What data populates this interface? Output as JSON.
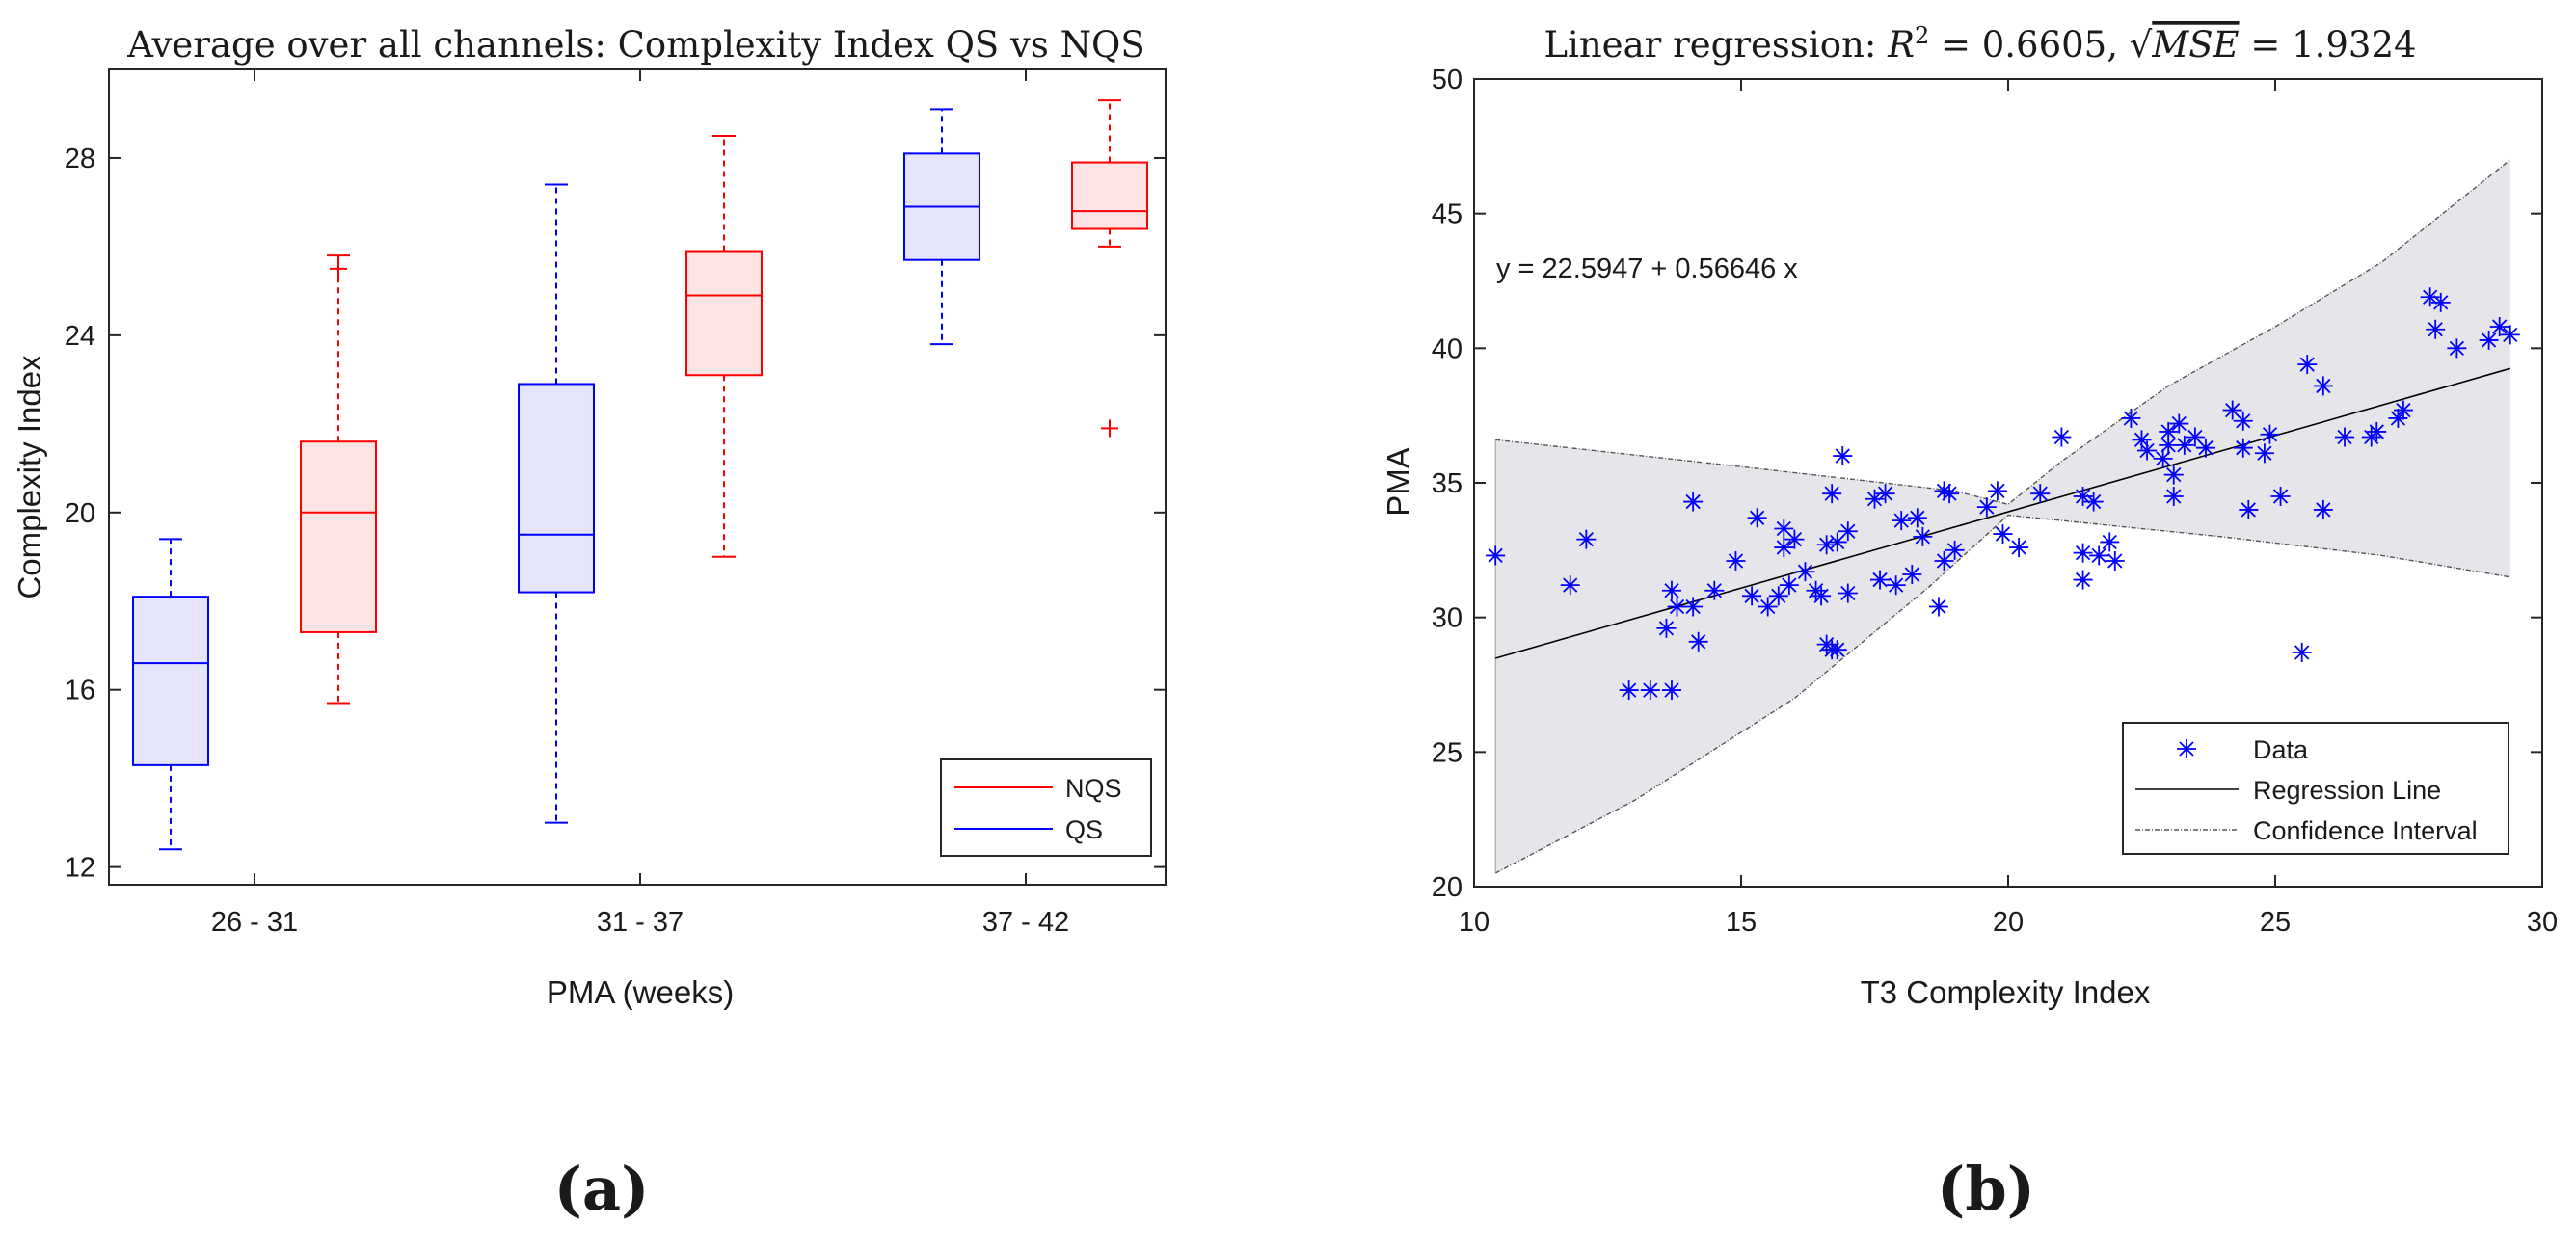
{
  "chart_data": [
    {
      "type": "box",
      "panel_label": "(a)",
      "title": "Average over all channels: Complexity Index QS vs NQS",
      "xlabel": "PMA (weeks)",
      "ylabel": "Complexity Index",
      "categories": [
        "26 - 31",
        "31 - 37",
        "37 - 42"
      ],
      "yticks": [
        12,
        16,
        20,
        24,
        28
      ],
      "ylim": [
        11.6,
        30.0
      ],
      "series": [
        {
          "name": "QS",
          "color": "#0000ff",
          "fill": "#e4e4fb",
          "boxes": [
            {
              "whisker_low": 12.4,
              "q1": 14.3,
              "median": 16.6,
              "q3": 18.1,
              "whisker_high": 19.4,
              "outliers": []
            },
            {
              "whisker_low": 13.0,
              "q1": 18.2,
              "median": 19.5,
              "q3": 22.9,
              "whisker_high": 27.4,
              "outliers": []
            },
            {
              "whisker_low": 23.8,
              "q1": 25.7,
              "median": 26.9,
              "q3": 28.1,
              "whisker_high": 29.1,
              "outliers": []
            }
          ]
        },
        {
          "name": "NQS",
          "color": "#ff0000",
          "fill": "#fde4e4",
          "boxes": [
            {
              "whisker_low": 15.7,
              "q1": 17.3,
              "median": 20.0,
              "q3": 21.6,
              "whisker_high": 25.8,
              "outliers": [
                25.5
              ]
            },
            {
              "whisker_low": 19.0,
              "q1": 23.1,
              "median": 24.9,
              "q3": 25.9,
              "whisker_high": 28.5,
              "outliers": []
            },
            {
              "whisker_low": 26.0,
              "q1": 26.4,
              "median": 26.8,
              "q3": 27.9,
              "whisker_high": 29.3,
              "outliers": [
                21.9
              ]
            }
          ]
        }
      ],
      "legend": {
        "position": "bottom-right",
        "entries": [
          "NQS",
          "QS"
        ]
      }
    },
    {
      "type": "scatter",
      "panel_label": "(b)",
      "title_prefix": "Linear regression: ",
      "title_r2_symbol": "R",
      "title_r2_exp": "2",
      "title_r2_value": " = 0.6605, ",
      "title_rmse_symbol": "MSE",
      "title_rmse_value": " = 1.9324",
      "equation": "y = 22.5947 + 0.56646 x",
      "xlabel": "T3 Complexity Index",
      "ylabel": "PMA",
      "xlim": [
        10,
        30
      ],
      "ylim": [
        20,
        50
      ],
      "xticks": [
        10,
        15,
        20,
        25,
        30
      ],
      "yticks": [
        20,
        25,
        30,
        35,
        40,
        45,
        50
      ],
      "regression": {
        "intercept": 22.5947,
        "slope": 0.56646,
        "x_range": [
          10.4,
          29.4
        ]
      },
      "confidence_interval": {
        "upper": [
          [
            10.4,
            36.6
          ],
          [
            15.0,
            35.6
          ],
          [
            19.0,
            34.7
          ],
          [
            20.0,
            34.2
          ],
          [
            21.0,
            35.8
          ],
          [
            23.0,
            38.6
          ],
          [
            25.0,
            40.8
          ],
          [
            27.0,
            43.2
          ],
          [
            29.4,
            47.0
          ]
        ],
        "lower": [
          [
            10.4,
            20.5
          ],
          [
            13.0,
            23.2
          ],
          [
            16.0,
            27.0
          ],
          [
            18.5,
            31.1
          ],
          [
            20.0,
            33.8
          ],
          [
            21.0,
            33.6
          ],
          [
            24.0,
            33.0
          ],
          [
            27.0,
            32.3
          ],
          [
            29.4,
            31.5
          ]
        ]
      },
      "points": [
        [
          10.4,
          32.3
        ],
        [
          11.8,
          31.2
        ],
        [
          12.1,
          32.9
        ],
        [
          12.9,
          27.3
        ],
        [
          13.3,
          27.3
        ],
        [
          13.7,
          27.3
        ],
        [
          13.6,
          29.6
        ],
        [
          13.7,
          31.0
        ],
        [
          13.8,
          30.4
        ],
        [
          14.1,
          30.4
        ],
        [
          14.1,
          34.3
        ],
        [
          14.2,
          29.1
        ],
        [
          14.5,
          31.0
        ],
        [
          14.9,
          32.1
        ],
        [
          15.2,
          30.8
        ],
        [
          15.3,
          33.7
        ],
        [
          15.5,
          30.4
        ],
        [
          15.7,
          30.8
        ],
        [
          15.8,
          32.6
        ],
        [
          15.8,
          33.3
        ],
        [
          15.9,
          31.2
        ],
        [
          16.0,
          32.9
        ],
        [
          16.2,
          31.7
        ],
        [
          16.4,
          31.0
        ],
        [
          16.5,
          30.8
        ],
        [
          16.6,
          32.7
        ],
        [
          16.7,
          28.8
        ],
        [
          16.6,
          29.0
        ],
        [
          16.8,
          28.8
        ],
        [
          16.7,
          34.6
        ],
        [
          16.8,
          32.8
        ],
        [
          16.9,
          36.0
        ],
        [
          17.0,
          33.2
        ],
        [
          17.0,
          30.9
        ],
        [
          17.5,
          34.4
        ],
        [
          17.6,
          31.4
        ],
        [
          17.7,
          34.6
        ],
        [
          17.9,
          31.2
        ],
        [
          18.0,
          33.6
        ],
        [
          18.2,
          31.6
        ],
        [
          18.3,
          33.7
        ],
        [
          18.4,
          33.0
        ],
        [
          18.7,
          30.4
        ],
        [
          18.8,
          32.1
        ],
        [
          18.8,
          34.7
        ],
        [
          18.9,
          34.6
        ],
        [
          19.0,
          32.5
        ],
        [
          19.6,
          34.1
        ],
        [
          19.8,
          34.7
        ],
        [
          19.9,
          33.1
        ],
        [
          20.2,
          32.6
        ],
        [
          20.6,
          34.6
        ],
        [
          21.0,
          36.7
        ],
        [
          21.4,
          32.4
        ],
        [
          21.4,
          34.5
        ],
        [
          21.4,
          31.4
        ],
        [
          21.6,
          34.3
        ],
        [
          21.7,
          32.3
        ],
        [
          21.9,
          32.8
        ],
        [
          22.0,
          32.1
        ],
        [
          22.3,
          37.4
        ],
        [
          22.5,
          36.6
        ],
        [
          22.6,
          36.2
        ],
        [
          22.9,
          35.9
        ],
        [
          23.0,
          36.9
        ],
        [
          23.0,
          36.4
        ],
        [
          23.1,
          34.5
        ],
        [
          23.1,
          35.3
        ],
        [
          23.2,
          37.2
        ],
        [
          23.3,
          36.4
        ],
        [
          23.5,
          36.7
        ],
        [
          23.7,
          36.3
        ],
        [
          24.2,
          37.7
        ],
        [
          24.4,
          37.3
        ],
        [
          24.4,
          36.3
        ],
        [
          24.5,
          34.0
        ],
        [
          24.8,
          36.1
        ],
        [
          24.9,
          36.8
        ],
        [
          25.1,
          34.5
        ],
        [
          25.5,
          28.7
        ],
        [
          25.6,
          39.4
        ],
        [
          25.9,
          38.6
        ],
        [
          25.9,
          34.0
        ],
        [
          26.3,
          36.7
        ],
        [
          26.8,
          36.7
        ],
        [
          26.9,
          36.9
        ],
        [
          27.3,
          37.4
        ],
        [
          27.4,
          37.7
        ],
        [
          27.9,
          41.9
        ],
        [
          28.0,
          40.7
        ],
        [
          28.1,
          41.7
        ],
        [
          28.4,
          40.0
        ],
        [
          29.0,
          40.3
        ],
        [
          29.2,
          40.8
        ],
        [
          29.4,
          40.5
        ]
      ],
      "legend": {
        "position": "bottom-right",
        "entries": [
          "Data",
          "Regression Line",
          "Confidence Interval"
        ]
      }
    }
  ]
}
